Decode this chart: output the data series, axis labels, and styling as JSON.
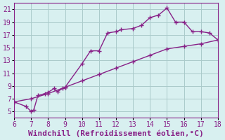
{
  "xlabel": "Windchill (Refroidissement éolien,°C)",
  "line1_x": [
    6.0,
    6.7,
    7.0,
    7.15,
    7.4,
    7.8,
    8.0,
    8.35,
    8.55,
    8.85,
    9.0,
    10.0,
    10.5,
    11.0,
    11.5,
    12.0,
    12.3,
    13.0,
    13.5,
    14.0,
    14.5,
    15.0,
    15.5,
    16.0,
    16.5,
    17.0,
    17.5,
    18.0
  ],
  "line1_y": [
    6.5,
    5.8,
    5.0,
    5.2,
    7.5,
    7.8,
    8.0,
    8.6,
    8.1,
    8.6,
    8.8,
    12.5,
    14.5,
    14.5,
    17.3,
    17.5,
    17.8,
    18.0,
    18.5,
    19.7,
    20.1,
    21.2,
    19.0,
    19.0,
    17.5,
    17.5,
    17.3,
    16.2
  ],
  "line2_x": [
    6.0,
    7.0,
    8.0,
    9.0,
    10.0,
    11.0,
    12.0,
    13.0,
    14.0,
    15.0,
    16.0,
    17.0,
    18.0
  ],
  "line2_y": [
    6.5,
    7.0,
    7.8,
    8.8,
    9.8,
    10.8,
    11.8,
    12.8,
    13.8,
    14.8,
    15.2,
    15.6,
    16.2
  ],
  "line_color": "#882288",
  "bg_color": "#d8f0f0",
  "grid_color": "#aacaca",
  "xlim": [
    6,
    18
  ],
  "ylim": [
    4,
    22
  ],
  "xticks": [
    6,
    7,
    8,
    9,
    10,
    11,
    12,
    13,
    14,
    15,
    16,
    17,
    18
  ],
  "yticks": [
    5,
    7,
    9,
    11,
    13,
    15,
    17,
    19,
    21
  ],
  "marker": "+",
  "markersize": 4,
  "linewidth": 1.0,
  "tick_fontsize": 7,
  "xlabel_fontsize": 8
}
